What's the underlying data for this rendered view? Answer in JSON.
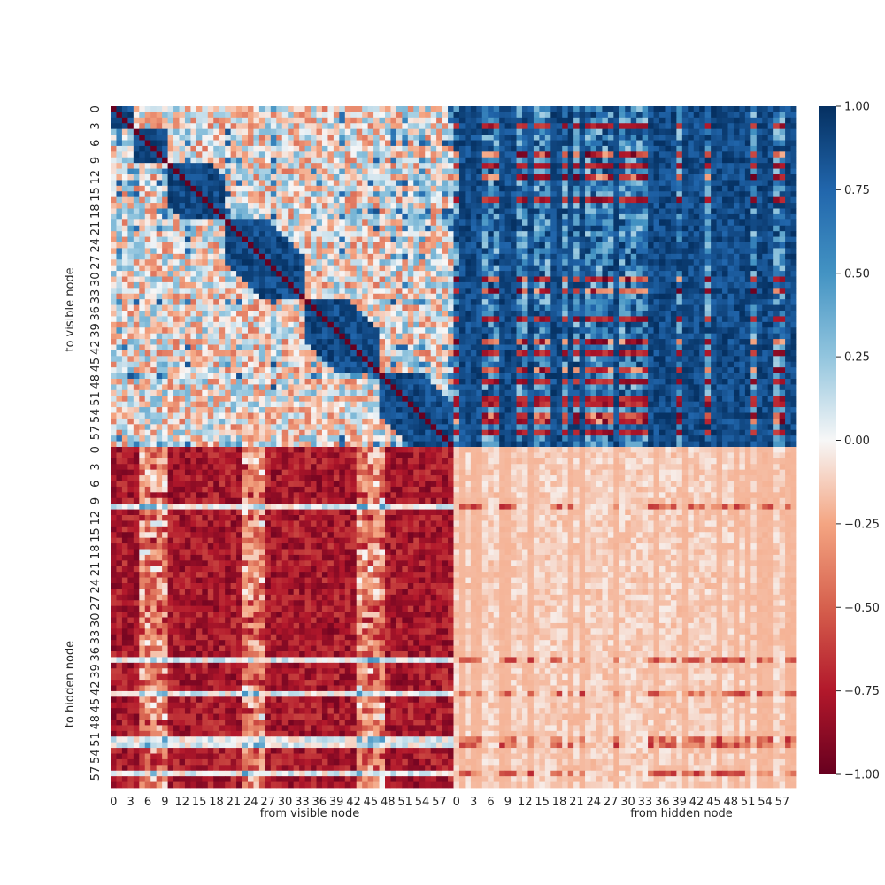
{
  "chart_data": {
    "type": "heatmap",
    "title": "",
    "colormap": "RdBu",
    "vlim": [
      -1.0,
      1.0
    ],
    "grid": false,
    "n_visible": 60,
    "n_hidden": 60,
    "xlabels": [
      "from visible node",
      "from hidden node"
    ],
    "ylabels": [
      "to visible node",
      "to hidden node"
    ],
    "xticks_visible": [
      "0",
      "3",
      "6",
      "9",
      "12",
      "15",
      "18",
      "21",
      "24",
      "27",
      "30",
      "33",
      "36",
      "39",
      "42",
      "45",
      "48",
      "51",
      "54",
      "57"
    ],
    "xticks_hidden": [
      "0",
      "3",
      "6",
      "9",
      "12",
      "15",
      "18",
      "21",
      "24",
      "27",
      "30",
      "33",
      "36",
      "39",
      "42",
      "45",
      "48",
      "51",
      "54",
      "57"
    ],
    "yticks_visible": [
      "0",
      "3",
      "6",
      "9",
      "12",
      "15",
      "18",
      "21",
      "24",
      "27",
      "30",
      "33",
      "36",
      "39",
      "42",
      "45",
      "48",
      "51",
      "54",
      "57"
    ],
    "yticks_hidden": [
      "0",
      "3",
      "6",
      "9",
      "12",
      "15",
      "18",
      "21",
      "24",
      "27",
      "30",
      "33",
      "36",
      "39",
      "42",
      "45",
      "48",
      "51",
      "54",
      "57"
    ],
    "colorbar_ticks": [
      "1.00",
      "0.75",
      "0.50",
      "0.25",
      "0.00",
      "−0.25",
      "−0.50",
      "−0.75",
      "−1.00"
    ],
    "quadrants": {
      "visible_to_visible": {
        "diagonal": -1.0,
        "typical_range": [
          -0.4,
          0.6
        ],
        "band_near_diagonal": 0.9
      },
      "hidden_to_visible": {
        "typical_range": [
          -1.0,
          1.0
        ],
        "mostly": 0.8
      },
      "visible_to_hidden": {
        "typical_range": [
          -1.0,
          0.3
        ],
        "mostly": -0.8
      },
      "hidden_to_hidden": {
        "typical_range": [
          -0.8,
          0.4
        ],
        "mostly": -0.15
      }
    }
  }
}
